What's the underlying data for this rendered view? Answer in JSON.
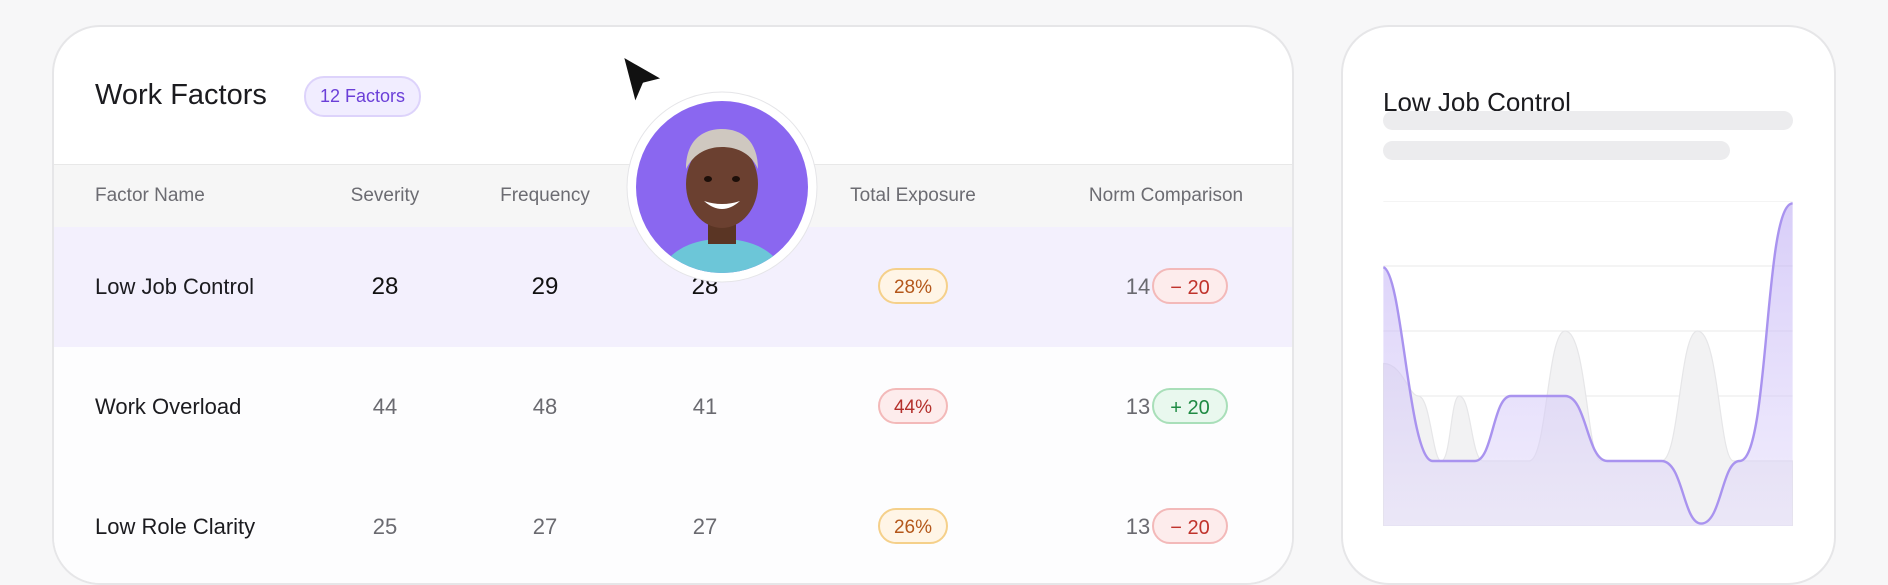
{
  "header": {
    "title": "Work Factors",
    "badge": "12 Factors"
  },
  "table": {
    "columns": [
      "Factor Name",
      "Severity",
      "Frequency",
      "Total Exposure",
      "Norm Comparison"
    ],
    "rows": [
      [
        "Low Job Control",
        28,
        29,
        28,
        "28%",
        14,
        "− 20"
      ],
      [
        "Work Overload",
        44,
        48,
        41,
        "44%",
        13,
        "+ 20"
      ],
      [
        "Low Role Clarity",
        25,
        27,
        27,
        "26%",
        13,
        "− 20"
      ]
    ]
  },
  "side_panel": {
    "title": "Low Job Control"
  }
}
